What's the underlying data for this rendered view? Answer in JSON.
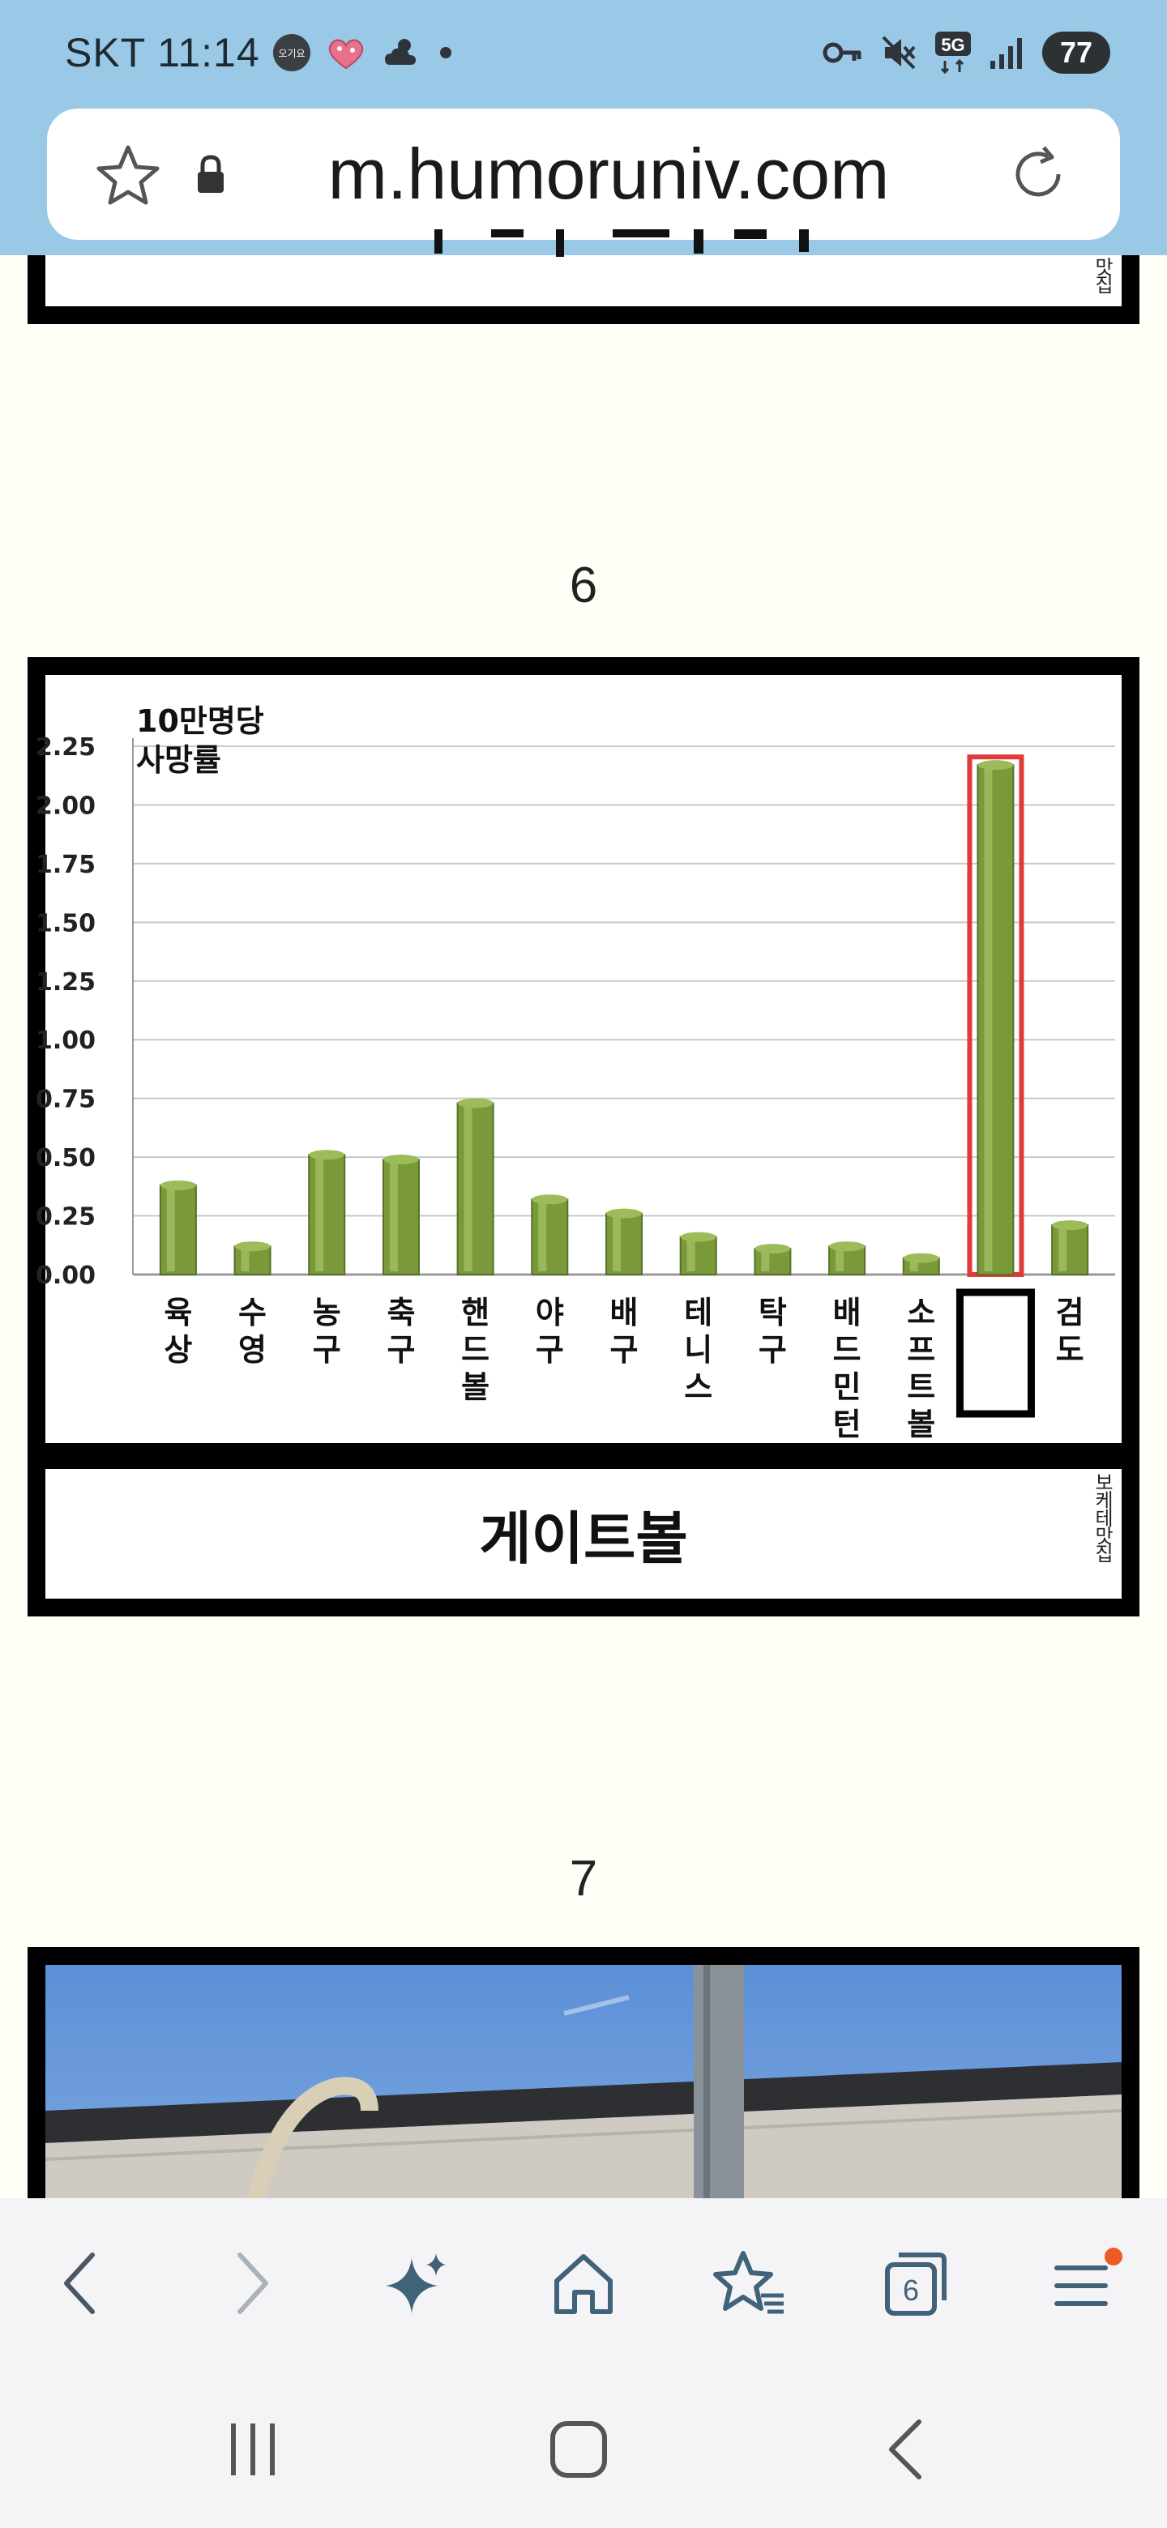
{
  "status_bar": {
    "carrier_time": "SKT 11:14",
    "battery": "77",
    "network": "5G",
    "notification_badge": "오기요",
    "icons": [
      "badge-icon",
      "heart-sticker-icon",
      "weather-icon",
      "dot-icon",
      "key-icon",
      "mute-icon",
      "5g-icon",
      "signal-icon",
      "battery-icon"
    ]
  },
  "url_bar": {
    "url": "m.humoruniv.com",
    "icons": [
      "star-icon",
      "lock-icon",
      "reload-icon"
    ]
  },
  "content": {
    "top_watermark": "맛집",
    "section6_number": "6",
    "section6_caption": "게이트볼",
    "section6_watermark": "보케테맛집",
    "section7_number": "7"
  },
  "chart_data": {
    "type": "bar",
    "title": "10만명당\n사망률",
    "title_lines": [
      "10만명당",
      "사망률"
    ],
    "categories": [
      "육상",
      "수영",
      "농구",
      "축구",
      "핸드볼",
      "야구",
      "배구",
      "테니스",
      "탁구",
      "배드민턴",
      "소프트볼",
      "",
      "검도"
    ],
    "values": [
      0.38,
      0.12,
      0.51,
      0.49,
      0.73,
      0.32,
      0.26,
      0.16,
      0.11,
      0.12,
      0.07,
      2.17,
      0.21
    ],
    "highlighted_index": 11,
    "ylim": [
      0,
      2.25
    ],
    "yticks": [
      "0.00",
      "0.25",
      "0.50",
      "0.75",
      "1.00",
      "1.25",
      "1.50",
      "1.75",
      "2.00",
      "2.25"
    ],
    "ytick_values": [
      0,
      0.25,
      0.5,
      0.75,
      1.0,
      1.25,
      1.5,
      1.75,
      2.0,
      2.25
    ],
    "grid": true,
    "bar_color": "#7a9a3a",
    "highlight_color": "#e03a3a"
  },
  "toolbar": {
    "tab_count": "6",
    "icons": [
      "back-icon",
      "forward-icon",
      "sparkle-icon",
      "home-icon",
      "bookmarks-icon",
      "tabs-icon",
      "menu-icon"
    ]
  },
  "nav_bar": {
    "icons": [
      "recents-icon",
      "home-nav-icon",
      "back-nav-icon"
    ]
  }
}
